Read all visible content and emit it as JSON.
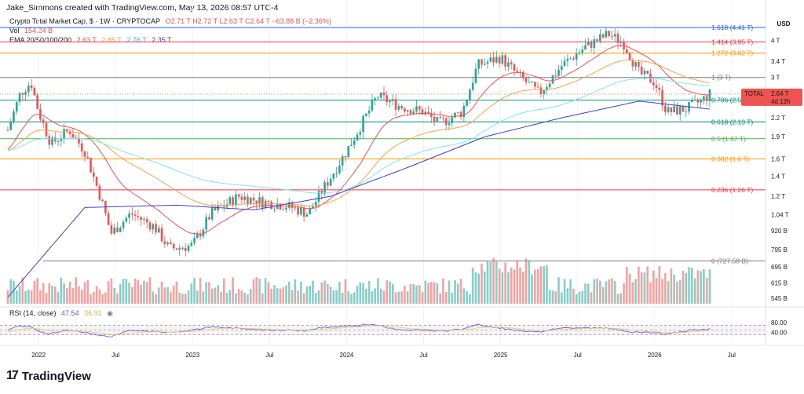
{
  "header": {
    "created_by": "Jake_Simmons created with TradingView.com, May 13, 2026 08:57 UTC-4"
  },
  "legend": {
    "main": "Crypto Total Market Cap, $ · 1W · CRYPTOCAP",
    "ohlc": "O2.71 T  H2.72 T  L2.63 T  C2.64 T  −63.88 B (−2.36%)",
    "vol_label": "Vol",
    "vol_value": "154.24 B",
    "ema_label": "EMA 20/50/100/200",
    "ema_values": [
      "2.63 T",
      "2.85 T",
      "2.76 T",
      "2.35 T"
    ],
    "rsi_label": "RSI (14, close)",
    "rsi_value": "47.54",
    "rsi_ma": "36.91"
  },
  "colors": {
    "up": "#26a69a",
    "down": "#ef5350",
    "ema20": "#ef5350",
    "ema50": "#f7a44a",
    "ema100": "#7fe6f1",
    "ema200": "#3f3fc9",
    "rsi": "#6c5ce7",
    "rsi_ma": "#f2d15d"
  },
  "axis": {
    "currency": "USD",
    "price_ticks": [
      "4 T",
      "3.4 T",
      "3 T",
      "2.2 T",
      "1.9 T",
      "1.6 T",
      "1.4 T",
      "1.2 T",
      "1.04 T",
      "920 B",
      "795 B",
      "695 B",
      "615 B",
      "545 B"
    ],
    "rsi_ticks": [
      "80.00",
      "40.00"
    ],
    "x_ticks": [
      "2022",
      "Jul",
      "2023",
      "Jul",
      "2024",
      "Jul",
      "2025",
      "Jul",
      "2026",
      "Jul"
    ]
  },
  "price_badge": {
    "label": "TOTAL",
    "value": "2.64 T",
    "countdown": "4d 12h"
  },
  "brand": {
    "name": "TradingView",
    "mark": "17"
  },
  "chart_data": {
    "type": "candlestick",
    "title": "Crypto Total Market Cap, $ · 1W · CRYPTOCAP",
    "y_scale": "log",
    "fib_levels": [
      {
        "ratio": "1.618",
        "value": "4.41 T",
        "color": "#2962ff"
      },
      {
        "ratio": "1.414",
        "value": "3.95 T",
        "color": "#f23645"
      },
      {
        "ratio": "1.272",
        "value": "3.62 T",
        "color": "#ff9800"
      },
      {
        "ratio": "1",
        "value": "3 T",
        "color": "#787b86"
      },
      {
        "ratio": "0.786",
        "value": "2.52 T",
        "color": "#089981"
      },
      {
        "ratio": "0.618",
        "value": "2.13 T",
        "color": "#00897b"
      },
      {
        "ratio": "0.5",
        "value": "1.87 T",
        "color": "#4caf50"
      },
      {
        "ratio": "0.382",
        "value": "1.6 T",
        "color": "#ff9800"
      },
      {
        "ratio": "0.236",
        "value": "1.26 T",
        "color": "#f23645"
      },
      {
        "ratio": "0",
        "value": "727.58 B",
        "color": "#787b86"
      }
    ],
    "close_path_T": [
      [
        2021.8,
        2.0
      ],
      [
        2021.88,
        2.65
      ],
      [
        2021.95,
        2.9
      ],
      [
        2022.0,
        2.3
      ],
      [
        2022.08,
        1.8
      ],
      [
        2022.2,
        2.0
      ],
      [
        2022.3,
        1.7
      ],
      [
        2022.4,
        1.2
      ],
      [
        2022.47,
        0.9
      ],
      [
        2022.6,
        1.05
      ],
      [
        2022.75,
        0.95
      ],
      [
        2022.85,
        0.8
      ],
      [
        2023.0,
        0.82
      ],
      [
        2023.12,
        1.05
      ],
      [
        2023.3,
        1.2
      ],
      [
        2023.45,
        1.15
      ],
      [
        2023.6,
        1.12
      ],
      [
        2023.75,
        1.05
      ],
      [
        2023.88,
        1.35
      ],
      [
        2024.0,
        1.7
      ],
      [
        2024.12,
        2.2
      ],
      [
        2024.2,
        2.6
      ],
      [
        2024.35,
        2.4
      ],
      [
        2024.5,
        2.3
      ],
      [
        2024.6,
        2.1
      ],
      [
        2024.75,
        2.3
      ],
      [
        2024.85,
        3.3
      ],
      [
        2025.0,
        3.5
      ],
      [
        2025.1,
        3.1
      ],
      [
        2025.25,
        2.65
      ],
      [
        2025.4,
        3.3
      ],
      [
        2025.55,
        3.8
      ],
      [
        2025.7,
        4.2
      ],
      [
        2025.8,
        3.9
      ],
      [
        2025.9,
        3.1
      ],
      [
        2026.0,
        2.9
      ],
      [
        2026.08,
        2.3
      ],
      [
        2026.2,
        2.35
      ],
      [
        2026.3,
        2.5
      ],
      [
        2026.36,
        2.64
      ]
    ],
    "ema200_path_T": [
      [
        2021.8,
        0.55
      ],
      [
        2022.3,
        1.1
      ],
      [
        2022.9,
        1.12
      ],
      [
        2023.4,
        1.08
      ],
      [
        2023.9,
        1.2
      ],
      [
        2024.4,
        1.5
      ],
      [
        2024.9,
        1.9
      ],
      [
        2025.4,
        2.2
      ],
      [
        2025.9,
        2.5
      ],
      [
        2026.36,
        2.35
      ]
    ],
    "rsi_range": [
      0,
      100
    ],
    "rsi_levels": [
      70,
      50,
      30
    ]
  }
}
